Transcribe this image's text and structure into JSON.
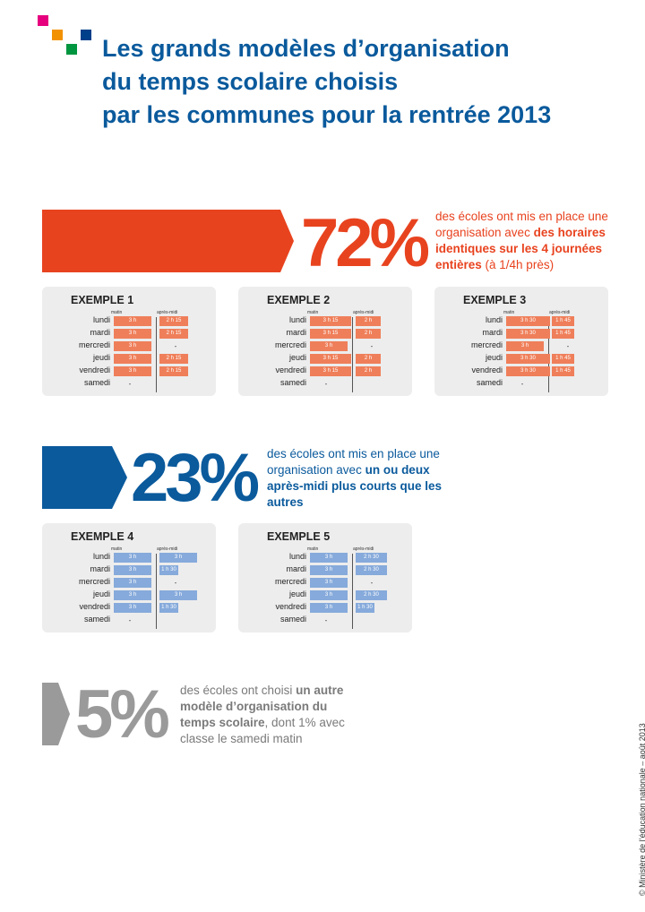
{
  "title_lines": [
    "Les grands modèles d’organisation",
    "du temps scolaire choisis",
    "par les communes pour la rentrée 2013"
  ],
  "colors": {
    "title": "#0a5a9c",
    "orange": "#e8431f",
    "blue": "#0a5a9c",
    "grey": "#9a9a9a",
    "bar_orange": "#ef7f5a",
    "bar_blue": "#86aadb",
    "logo": [
      "#e6007e",
      "#f39200",
      "#009640",
      "#003f8a"
    ]
  },
  "sections": [
    {
      "pct": "72%",
      "color": "#e8431f",
      "bar_color": "#ef7f5a",
      "desc_parts": [
        {
          "t": "des écoles ont mis en place une organisation avec ",
          "b": false
        },
        {
          "t": "des horaires identiques sur les 4 journées entières",
          "b": true
        },
        {
          "t": " (à 1/4h près)",
          "b": false
        }
      ]
    },
    {
      "pct": "23%",
      "color": "#0a5a9c",
      "bar_color": "#86aadb",
      "desc_parts": [
        {
          "t": "des écoles ont mis en place une organisation avec ",
          "b": false
        },
        {
          "t": "un ou deux après-midi plus courts que les autres",
          "b": true
        }
      ]
    },
    {
      "pct": "5%",
      "color": "#9a9a9a",
      "desc_parts": [
        {
          "t": "des écoles ont choisi ",
          "b": false
        },
        {
          "t": "un autre modèle d’organisation du temps scolaire",
          "b": true
        },
        {
          "t": ", dont 1% avec classe le samedi matin",
          "b": false
        }
      ]
    }
  ],
  "column_headers": {
    "matin": "matin",
    "apres_midi": "après-midi"
  },
  "days": [
    "lundi",
    "mardi",
    "mercredi",
    "jeudi",
    "vendredi",
    "samedi"
  ],
  "chart_data": [
    {
      "type": "bar",
      "title": "EXEMPLE 1",
      "color": "#ef7f5a",
      "matin": [
        "3 h",
        "3 h",
        "3 h",
        "3 h",
        "3 h",
        "-"
      ],
      "apres_midi": [
        "2 h 15",
        "2 h 15",
        "-",
        "2 h 15",
        "2 h 15",
        ""
      ],
      "matin_hours": [
        3,
        3,
        3,
        3,
        3,
        0
      ],
      "apres_midi_hours": [
        2.25,
        2.25,
        0,
        2.25,
        2.25,
        0
      ]
    },
    {
      "type": "bar",
      "title": "EXEMPLE 2",
      "color": "#ef7f5a",
      "matin": [
        "3 h 15",
        "3 h 15",
        "3 h",
        "3 h 15",
        "3 h 15",
        "-"
      ],
      "apres_midi": [
        "2 h",
        "2 h",
        "-",
        "2 h",
        "2 h",
        ""
      ],
      "matin_hours": [
        3.25,
        3.25,
        3,
        3.25,
        3.25,
        0
      ],
      "apres_midi_hours": [
        2,
        2,
        0,
        2,
        2,
        0
      ]
    },
    {
      "type": "bar",
      "title": "EXEMPLE 3",
      "color": "#ef7f5a",
      "matin": [
        "3 h 30",
        "3 h 30",
        "3 h",
        "3 h 30",
        "3 h 30",
        "-"
      ],
      "apres_midi": [
        "1 h 45",
        "1 h 45",
        "-",
        "1 h 45",
        "1 h 45",
        ""
      ],
      "matin_hours": [
        3.5,
        3.5,
        3,
        3.5,
        3.5,
        0
      ],
      "apres_midi_hours": [
        1.75,
        1.75,
        0,
        1.75,
        1.75,
        0
      ]
    },
    {
      "type": "bar",
      "title": "EXEMPLE 4",
      "color": "#86aadb",
      "matin": [
        "3 h",
        "3 h",
        "3 h",
        "3 h",
        "3 h",
        "-"
      ],
      "apres_midi": [
        "3 h",
        "1 h 30",
        "-",
        "3 h",
        "1 h 30",
        ""
      ],
      "matin_hours": [
        3,
        3,
        3,
        3,
        3,
        0
      ],
      "apres_midi_hours": [
        3,
        1.5,
        0,
        3,
        1.5,
        0
      ]
    },
    {
      "type": "bar",
      "title": "EXEMPLE 5",
      "color": "#86aadb",
      "matin": [
        "3 h",
        "3 h",
        "3 h",
        "3 h",
        "3 h",
        "-"
      ],
      "apres_midi": [
        "2 h 30",
        "2 h 30",
        "-",
        "2 h 30",
        "1 h 30",
        ""
      ],
      "matin_hours": [
        3,
        3,
        3,
        3,
        3,
        0
      ],
      "apres_midi_hours": [
        2.5,
        2.5,
        0,
        2.5,
        1.5,
        0
      ]
    }
  ],
  "credit": "© Ministère de l’éducation nationale – août 2013"
}
